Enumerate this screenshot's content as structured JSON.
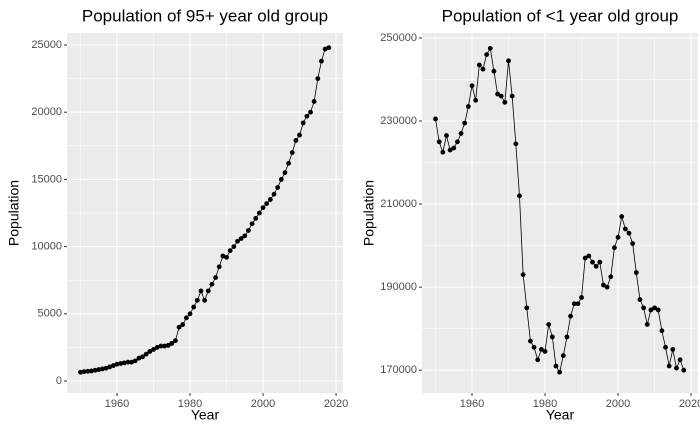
{
  "chart_data": [
    {
      "type": "line",
      "title": "Population of 95+ year old group",
      "x_label": "Year",
      "y_label": "Population",
      "x": [
        1950,
        1951,
        1952,
        1953,
        1954,
        1955,
        1956,
        1957,
        1958,
        1959,
        1960,
        1961,
        1962,
        1963,
        1964,
        1965,
        1966,
        1967,
        1968,
        1969,
        1970,
        1971,
        1972,
        1973,
        1974,
        1975,
        1976,
        1977,
        1978,
        1979,
        1980,
        1981,
        1982,
        1983,
        1984,
        1985,
        1986,
        1987,
        1988,
        1989,
        1990,
        1991,
        1992,
        1993,
        1994,
        1995,
        1996,
        1997,
        1998,
        1999,
        2000,
        2001,
        2002,
        2003,
        2004,
        2005,
        2006,
        2007,
        2008,
        2009,
        2010,
        2011,
        2012,
        2013,
        2014,
        2015,
        2016,
        2017,
        2018
      ],
      "values": [
        650,
        700,
        720,
        750,
        800,
        850,
        900,
        950,
        1050,
        1150,
        1250,
        1300,
        1350,
        1400,
        1400,
        1500,
        1700,
        1800,
        2000,
        2200,
        2350,
        2500,
        2600,
        2600,
        2650,
        2800,
        3000,
        4000,
        4200,
        4700,
        5000,
        5500,
        6000,
        6700,
        6000,
        6700,
        7200,
        7700,
        8500,
        9300,
        9200,
        9700,
        10000,
        10400,
        10600,
        10800,
        11200,
        11700,
        12100,
        12500,
        12900,
        13200,
        13500,
        13900,
        14400,
        15000,
        15500,
        16200,
        17000,
        17900,
        18300,
        19200,
        19700,
        20000,
        20800,
        22500,
        23800,
        24700,
        24800
      ],
      "xlim": [
        1946.3,
        2021.9
      ],
      "ylim": [
        -893,
        25893
      ],
      "xticks": [
        1960,
        1980,
        2000,
        2020
      ],
      "yticks": [
        0,
        5000,
        10000,
        15000,
        20000,
        25000
      ],
      "grid": true,
      "color": "#000000"
    },
    {
      "type": "line",
      "title": "Population of <1 year old group",
      "x_label": "Year",
      "y_label": "Population",
      "x": [
        1950,
        1951,
        1952,
        1953,
        1954,
        1955,
        1956,
        1957,
        1958,
        1959,
        1960,
        1961,
        1962,
        1963,
        1964,
        1965,
        1966,
        1967,
        1968,
        1969,
        1970,
        1971,
        1972,
        1973,
        1974,
        1975,
        1976,
        1977,
        1978,
        1979,
        1980,
        1981,
        1982,
        1983,
        1984,
        1985,
        1986,
        1987,
        1988,
        1989,
        1990,
        1991,
        1992,
        1993,
        1994,
        1995,
        1996,
        1997,
        1998,
        1999,
        2000,
        2001,
        2002,
        2003,
        2004,
        2005,
        2006,
        2007,
        2008,
        2009,
        2010,
        2011,
        2012,
        2013,
        2014,
        2015,
        2016,
        2017,
        2018
      ],
      "values": [
        230500,
        225000,
        222500,
        226500,
        223000,
        223500,
        225000,
        227000,
        229500,
        233500,
        238500,
        235000,
        243500,
        242500,
        246000,
        247500,
        242000,
        236500,
        236000,
        234500,
        244500,
        236000,
        224500,
        212000,
        193000,
        185000,
        177000,
        175500,
        172500,
        175000,
        174500,
        181000,
        178000,
        171000,
        169500,
        173500,
        178000,
        183000,
        186000,
        186000,
        187500,
        197000,
        197500,
        196000,
        195000,
        196000,
        190500,
        190000,
        192500,
        199500,
        202000,
        207000,
        204000,
        203000,
        200500,
        193500,
        187000,
        185000,
        181000,
        184500,
        185000,
        184500,
        179500,
        175500,
        171000,
        175000,
        170500,
        172500,
        170000
      ],
      "xlim": [
        1946.3,
        2021.9
      ],
      "ylim": [
        164500,
        251200
      ],
      "xticks": [
        1960,
        1980,
        2000,
        2020
      ],
      "yticks": [
        170000,
        190000,
        210000,
        230000,
        250000
      ],
      "grid": true,
      "color": "#000000"
    }
  ]
}
